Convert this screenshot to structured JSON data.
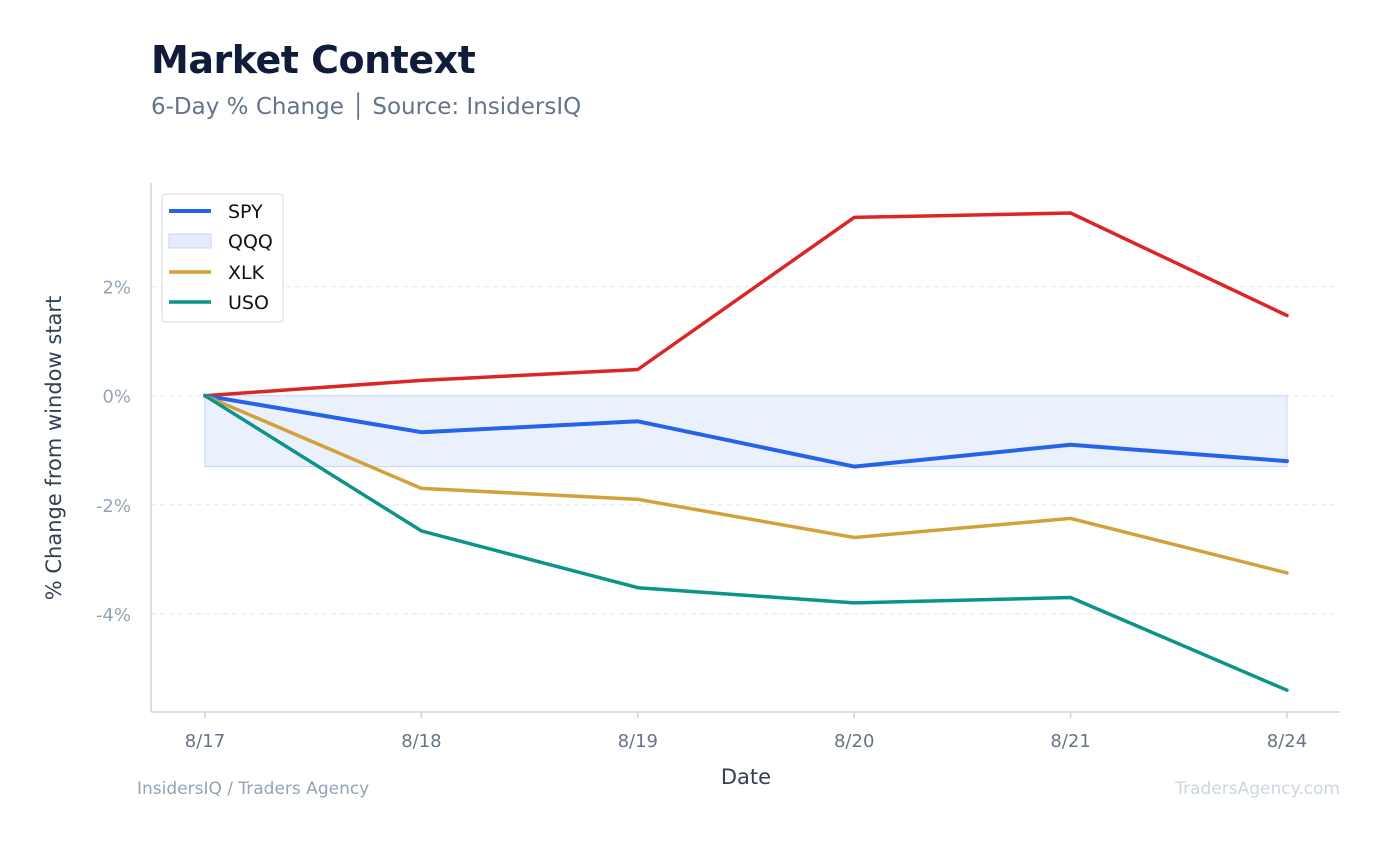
{
  "header": {
    "title": "Market Context",
    "subtitle": "6-Day % Change │ Source: InsidersIQ"
  },
  "footer": {
    "left": "InsidersIQ / Traders Agency",
    "right": "TradersAgency.com"
  },
  "colors": {
    "spy": "#2563eb",
    "qqq": "#dc2626",
    "qqq_fill": "#dbe4fb",
    "xlk": "#d4a03a",
    "uso": "#0d9488",
    "axis": "#cbd5e1",
    "grid": "#e2e8f0",
    "tick_text": "#94a3b8",
    "x_tick_text": "#64748b"
  },
  "chart_data": {
    "type": "line",
    "xlabel": "Date",
    "ylabel": "% Change from window start",
    "categories": [
      "8/17",
      "8/18",
      "8/19",
      "8/20",
      "8/21",
      "8/24"
    ],
    "ylim": [
      -5.8,
      3.9
    ],
    "yticks": [
      2,
      0,
      -2,
      -4
    ],
    "ytick_labels": [
      "2%",
      "0%",
      "-2%",
      "-4%"
    ],
    "grid": true,
    "legend_position": "top-left",
    "legend": [
      "SPY",
      "QQQ",
      "XLK",
      "USO"
    ],
    "series": [
      {
        "name": "SPY",
        "values": [
          0,
          -0.67,
          -0.47,
          -1.3,
          -0.9,
          -1.2
        ]
      },
      {
        "name": "XLK",
        "values": [
          0,
          -1.7,
          -1.9,
          -2.6,
          -2.25,
          -3.25
        ]
      },
      {
        "name": "USO",
        "values": [
          0,
          -2.48,
          -3.52,
          -3.8,
          -3.7,
          -5.4
        ]
      },
      {
        "name": "",
        "values": [
          0,
          0.28,
          0.48,
          3.27,
          3.35,
          1.47
        ]
      }
    ],
    "shaded_band": {
      "from": 0,
      "to": -1.3
    }
  }
}
